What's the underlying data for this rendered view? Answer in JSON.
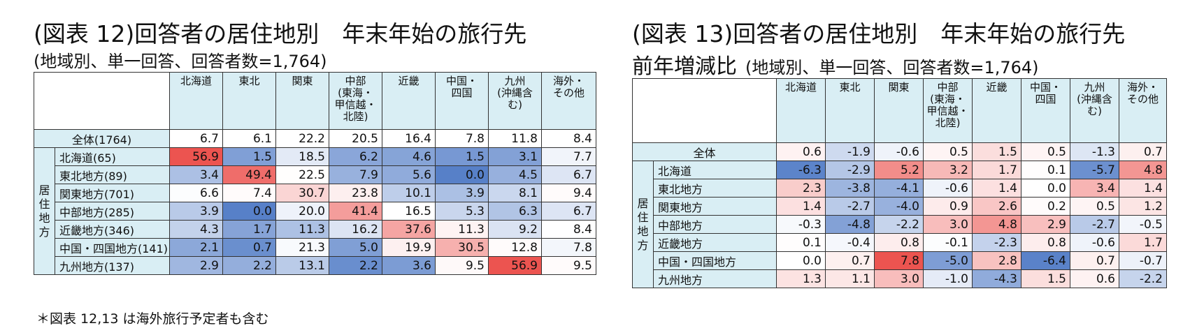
{
  "figure1": {
    "title": "(図表 12)回答者の居住地別　年末年始の旅行先",
    "subtitle": "(地域別、単一回答、回答者数=1,764)"
  },
  "figure2": {
    "title": "(図表 13)回答者の居住地別　年末年始の旅行先",
    "title_line2": "前年増減比",
    "subtitle": "(地域別、単一回答、回答者数=1,764)"
  },
  "footnote": "＊図表 12,13 は海外旅行予定者も含む",
  "colors": {
    "header_bg": "#d9eef4",
    "positive": "#e8554f",
    "negative": "#5b86c8",
    "neutral": "#ffffff"
  },
  "chart_data": [
    {
      "type": "heatmap",
      "title": "(図表 12)回答者の居住地別　年末年始の旅行先",
      "columns": [
        "北海道",
        "東北",
        "関東",
        "中部\n(東海・\n甲信越・\n北陸)",
        "近畿",
        "中国・\n四国",
        "九州\n(沖縄含\nむ)",
        "海外・\nその他"
      ],
      "total_row": {
        "label": "全体(1764)",
        "values": [
          6.7,
          6.1,
          22.2,
          20.5,
          16.4,
          7.8,
          11.8,
          8.4
        ]
      },
      "row_group_label": "居住地方",
      "rows": [
        {
          "label": "北海道(65)",
          "values": [
            56.9,
            1.5,
            18.5,
            6.2,
            4.6,
            1.5,
            3.1,
            7.7
          ]
        },
        {
          "label": "東北地方(89)",
          "values": [
            3.4,
            49.4,
            22.5,
            7.9,
            5.6,
            0.0,
            4.5,
            6.7
          ]
        },
        {
          "label": "関東地方(701)",
          "values": [
            6.6,
            7.4,
            30.7,
            23.8,
            10.1,
            3.9,
            8.1,
            9.4
          ]
        },
        {
          "label": "中部地方(285)",
          "values": [
            3.9,
            0.0,
            20.0,
            41.4,
            16.5,
            5.3,
            6.3,
            6.7
          ]
        },
        {
          "label": "近畿地方(346)",
          "values": [
            4.3,
            1.7,
            11.3,
            16.2,
            37.6,
            11.3,
            9.2,
            8.4
          ]
        },
        {
          "label": "中国・四国地方(141)",
          "values": [
            2.1,
            0.7,
            21.3,
            5.0,
            19.9,
            30.5,
            12.8,
            7.8
          ]
        },
        {
          "label": "九州地方(137)",
          "values": [
            2.9,
            2.2,
            13.1,
            2.2,
            3.6,
            9.5,
            56.9,
            9.5
          ]
        }
      ]
    },
    {
      "type": "heatmap",
      "title": "(図表 13)回答者の居住地別　年末年始の旅行先 前年増減比",
      "columns": [
        "北海道",
        "東北",
        "関東",
        "中部\n(東海・\n甲信越・\n北陸)",
        "近畿",
        "中国・\n四国",
        "九州\n(沖縄含\nむ)",
        "海外・\nその他"
      ],
      "total_row": {
        "label": "全体",
        "values": [
          0.6,
          -1.9,
          -0.6,
          0.5,
          1.5,
          0.5,
          -1.3,
          0.7
        ]
      },
      "row_group_label": "居住地方",
      "rows": [
        {
          "label": "北海道",
          "values": [
            -6.3,
            -2.9,
            5.2,
            3.2,
            1.7,
            0.1,
            -5.7,
            4.8
          ]
        },
        {
          "label": "東北地方",
          "values": [
            2.3,
            -3.8,
            -4.1,
            -0.6,
            1.4,
            0.0,
            3.4,
            1.4
          ]
        },
        {
          "label": "関東地方",
          "values": [
            1.4,
            -2.7,
            -4.0,
            0.9,
            2.6,
            0.2,
            0.5,
            1.2
          ]
        },
        {
          "label": "中部地方",
          "values": [
            -0.3,
            -4.8,
            -2.2,
            3.0,
            4.8,
            2.9,
            -2.7,
            -0.5
          ]
        },
        {
          "label": "近畿地方",
          "values": [
            0.1,
            -0.4,
            0.8,
            -0.1,
            -2.3,
            0.8,
            -0.6,
            1.7
          ]
        },
        {
          "label": "中国・四国地方",
          "values": [
            0.0,
            0.7,
            7.8,
            -5.0,
            2.8,
            -6.4,
            0.7,
            -0.7
          ]
        },
        {
          "label": "九州地方",
          "values": [
            1.3,
            1.1,
            3.0,
            -1.0,
            -4.3,
            1.5,
            0.6,
            -2.2
          ]
        }
      ]
    }
  ]
}
